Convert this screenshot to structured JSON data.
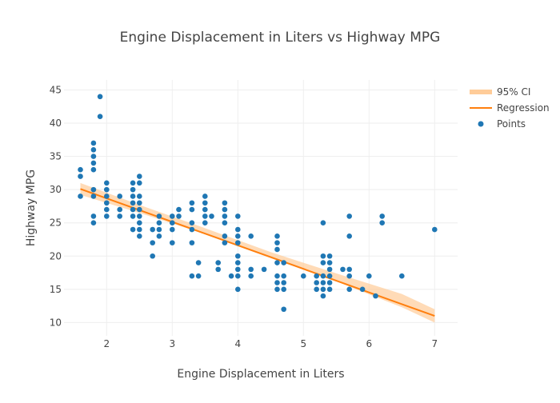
{
  "chart_data": {
    "type": "scatter",
    "title": "Engine Displacement in Liters vs Highway MPG",
    "xlabel": "Engine Displacement in Liters",
    "ylabel": "Highway MPG",
    "xlim": [
      1.35,
      7.35
    ],
    "ylim": [
      8,
      46.5
    ],
    "xticks": [
      2,
      3,
      4,
      5,
      6,
      7
    ],
    "yticks": [
      10,
      15,
      20,
      25,
      30,
      35,
      40,
      45
    ],
    "grid": true,
    "legend_position": "top-right",
    "legend": [
      {
        "label": "95% CI",
        "kind": "band",
        "color": "#ffcc99"
      },
      {
        "label": "Regression",
        "kind": "line",
        "color": "#ff7f0e"
      },
      {
        "label": "Points",
        "kind": "marker",
        "color": "#1f77b4"
      }
    ],
    "series": [
      {
        "name": "Points",
        "kind": "scatter",
        "color": "#1f77b4",
        "points": [
          [
            1.6,
            33
          ],
          [
            1.6,
            32
          ],
          [
            1.6,
            29
          ],
          [
            1.8,
            37
          ],
          [
            1.8,
            36
          ],
          [
            1.8,
            35
          ],
          [
            1.8,
            34
          ],
          [
            1.8,
            33
          ],
          [
            1.8,
            30
          ],
          [
            1.8,
            29
          ],
          [
            1.8,
            26
          ],
          [
            1.8,
            25
          ],
          [
            1.9,
            44
          ],
          [
            1.9,
            41
          ],
          [
            2.0,
            31
          ],
          [
            2.0,
            30
          ],
          [
            2.0,
            29
          ],
          [
            2.0,
            28
          ],
          [
            2.0,
            27
          ],
          [
            2.0,
            26
          ],
          [
            2.2,
            29
          ],
          [
            2.2,
            27
          ],
          [
            2.2,
            26
          ],
          [
            2.4,
            31
          ],
          [
            2.4,
            30
          ],
          [
            2.4,
            29
          ],
          [
            2.4,
            28
          ],
          [
            2.4,
            27
          ],
          [
            2.4,
            26
          ],
          [
            2.4,
            24
          ],
          [
            2.5,
            32
          ],
          [
            2.5,
            31
          ],
          [
            2.5,
            29
          ],
          [
            2.5,
            28
          ],
          [
            2.5,
            27
          ],
          [
            2.5,
            26
          ],
          [
            2.5,
            25
          ],
          [
            2.5,
            24
          ],
          [
            2.5,
            23
          ],
          [
            2.7,
            24
          ],
          [
            2.7,
            22
          ],
          [
            2.7,
            20
          ],
          [
            2.8,
            26
          ],
          [
            2.8,
            25
          ],
          [
            2.8,
            24
          ],
          [
            2.8,
            23
          ],
          [
            3.0,
            26
          ],
          [
            3.0,
            25
          ],
          [
            3.0,
            24
          ],
          [
            3.0,
            22
          ],
          [
            3.1,
            27
          ],
          [
            3.1,
            26
          ],
          [
            3.3,
            28
          ],
          [
            3.3,
            27
          ],
          [
            3.3,
            25
          ],
          [
            3.3,
            24
          ],
          [
            3.3,
            22
          ],
          [
            3.3,
            17
          ],
          [
            3.4,
            19
          ],
          [
            3.4,
            17
          ],
          [
            3.5,
            29
          ],
          [
            3.5,
            28
          ],
          [
            3.5,
            27
          ],
          [
            3.5,
            26
          ],
          [
            3.5,
            25
          ],
          [
            3.6,
            26
          ],
          [
            3.7,
            19
          ],
          [
            3.7,
            18
          ],
          [
            3.8,
            28
          ],
          [
            3.8,
            27
          ],
          [
            3.8,
            26
          ],
          [
            3.8,
            25
          ],
          [
            3.8,
            23
          ],
          [
            3.8,
            22
          ],
          [
            3.9,
            17
          ],
          [
            4.0,
            26
          ],
          [
            4.0,
            24
          ],
          [
            4.0,
            23
          ],
          [
            4.0,
            22
          ],
          [
            4.0,
            20
          ],
          [
            4.0,
            19
          ],
          [
            4.0,
            18
          ],
          [
            4.0,
            17
          ],
          [
            4.0,
            15
          ],
          [
            4.2,
            23
          ],
          [
            4.2,
            18
          ],
          [
            4.2,
            17
          ],
          [
            4.4,
            18
          ],
          [
            4.6,
            23
          ],
          [
            4.6,
            22
          ],
          [
            4.6,
            21
          ],
          [
            4.6,
            19
          ],
          [
            4.6,
            17
          ],
          [
            4.6,
            16
          ],
          [
            4.6,
            15
          ],
          [
            4.7,
            19
          ],
          [
            4.7,
            17
          ],
          [
            4.7,
            16
          ],
          [
            4.7,
            15
          ],
          [
            4.7,
            12
          ],
          [
            5.0,
            17
          ],
          [
            5.2,
            17
          ],
          [
            5.2,
            16
          ],
          [
            5.2,
            15
          ],
          [
            5.3,
            25
          ],
          [
            5.3,
            20
          ],
          [
            5.3,
            19
          ],
          [
            5.3,
            17
          ],
          [
            5.3,
            16
          ],
          [
            5.3,
            15
          ],
          [
            5.3,
            14
          ],
          [
            5.4,
            20
          ],
          [
            5.4,
            19
          ],
          [
            5.4,
            18
          ],
          [
            5.4,
            17
          ],
          [
            5.4,
            16
          ],
          [
            5.4,
            15
          ],
          [
            5.6,
            18
          ],
          [
            5.7,
            26
          ],
          [
            5.7,
            23
          ],
          [
            5.7,
            18
          ],
          [
            5.7,
            17
          ],
          [
            5.7,
            15
          ],
          [
            5.9,
            15
          ],
          [
            6.0,
            17
          ],
          [
            6.1,
            14
          ],
          [
            6.2,
            26
          ],
          [
            6.2,
            25
          ],
          [
            6.5,
            17
          ],
          [
            7.0,
            24
          ]
        ]
      },
      {
        "name": "Regression",
        "kind": "line",
        "color": "#ff7f0e",
        "x": [
          1.6,
          7.0
        ],
        "y": [
          30.1,
          11.0
        ]
      },
      {
        "name": "95% CI",
        "kind": "band",
        "color": "#ffcc99",
        "x": [
          1.6,
          2.5,
          3.5,
          4.5,
          5.5,
          6.5,
          7.0
        ],
        "lower": [
          29.2,
          26.5,
          23.3,
          19.7,
          16.2,
          12.3,
          10.0
        ],
        "upper": [
          31.0,
          27.7,
          24.2,
          20.6,
          17.4,
          14.3,
          12.0
        ]
      }
    ]
  }
}
